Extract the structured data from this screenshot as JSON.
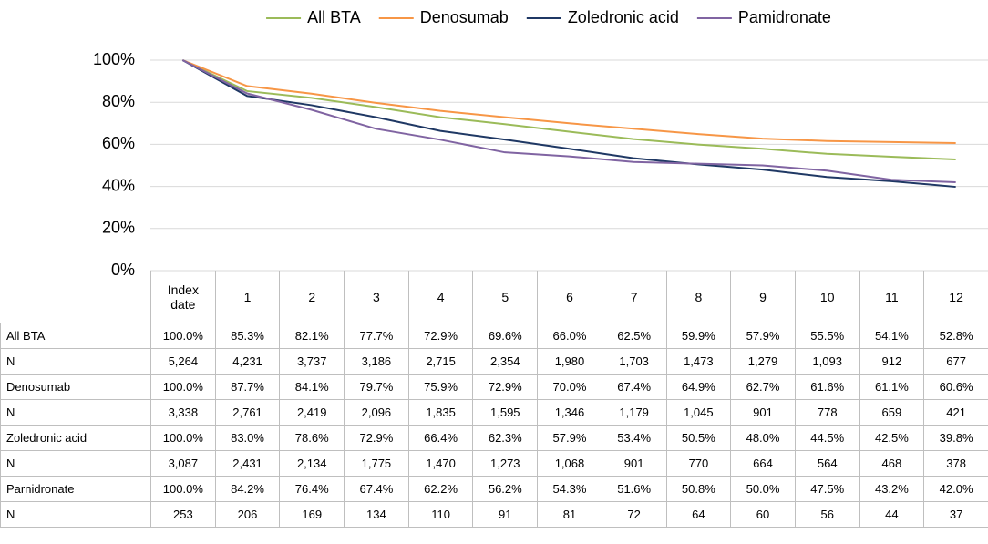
{
  "chart_data": {
    "type": "line",
    "categories": [
      "Index date",
      "1",
      "2",
      "3",
      "4",
      "5",
      "6",
      "7",
      "8",
      "9",
      "10",
      "11",
      "12"
    ],
    "ylim": [
      0,
      100
    ],
    "yticks": [
      {
        "value": 0,
        "label": "0%"
      },
      {
        "value": 20,
        "label": "20%"
      },
      {
        "value": 40,
        "label": "40%"
      },
      {
        "value": 60,
        "label": "60%"
      },
      {
        "value": 80,
        "label": "80%"
      },
      {
        "value": 100,
        "label": "100%"
      }
    ],
    "grid": true,
    "legend": "top",
    "series": [
      {
        "name": "All BTA",
        "table_label": "All BTA",
        "color": "#9bbb59",
        "values": [
          100,
          85.3,
          82.1,
          77.7,
          72.9,
          69.6,
          66.0,
          62.5,
          59.9,
          57.9,
          55.5,
          54.1,
          52.8
        ],
        "value_labels": [
          "100.0%",
          "85.3%",
          "82.1%",
          "77.7%",
          "72.9%",
          "69.6%",
          "66.0%",
          "62.5%",
          "59.9%",
          "57.9%",
          "55.5%",
          "54.1%",
          "52.8%"
        ],
        "n_label": "N",
        "n": [
          "5,264",
          "4,231",
          "3,737",
          "3,186",
          "2,715",
          "2,354",
          "1,980",
          "1,703",
          "1,473",
          "1,279",
          "1,093",
          "912",
          "677"
        ]
      },
      {
        "name": "Denosumab",
        "table_label": "Denosumab",
        "color": "#f79646",
        "values": [
          100,
          87.7,
          84.1,
          79.7,
          75.9,
          72.9,
          70.0,
          67.4,
          64.9,
          62.7,
          61.6,
          61.1,
          60.6
        ],
        "value_labels": [
          "100.0%",
          "87.7%",
          "84.1%",
          "79.7%",
          "75.9%",
          "72.9%",
          "70.0%",
          "67.4%",
          "64.9%",
          "62.7%",
          "61.6%",
          "61.1%",
          "60.6%"
        ],
        "n_label": "N",
        "n": [
          "3,338",
          "2,761",
          "2,419",
          "2,096",
          "1,835",
          "1,595",
          "1,346",
          "1,179",
          "1,045",
          "901",
          "778",
          "659",
          "421"
        ]
      },
      {
        "name": "Zoledronic acid",
        "table_label": "Zoledronic acid",
        "color": "#1f3864",
        "values": [
          100,
          83.0,
          78.6,
          72.9,
          66.4,
          62.3,
          57.9,
          53.4,
          50.5,
          48.0,
          44.5,
          42.5,
          39.8
        ],
        "value_labels": [
          "100.0%",
          "83.0%",
          "78.6%",
          "72.9%",
          "66.4%",
          "62.3%",
          "57.9%",
          "53.4%",
          "50.5%",
          "48.0%",
          "44.5%",
          "42.5%",
          "39.8%"
        ],
        "n_label": "N",
        "n": [
          "3,087",
          "2,431",
          "2,134",
          "1,775",
          "1,470",
          "1,273",
          "1,068",
          "901",
          "770",
          "664",
          "564",
          "468",
          "378"
        ]
      },
      {
        "name": "Pamidronate",
        "table_label": "Parnidronate",
        "color": "#8064a2",
        "values": [
          100,
          84.2,
          76.4,
          67.4,
          62.2,
          56.2,
          54.3,
          51.6,
          50.8,
          50.0,
          47.5,
          43.2,
          42.0
        ],
        "value_labels": [
          "100.0%",
          "84.2%",
          "76.4%",
          "67.4%",
          "62.2%",
          "56.2%",
          "54.3%",
          "51.6%",
          "50.8%",
          "50.0%",
          "47.5%",
          "43.2%",
          "42.0%"
        ],
        "n_label": "N",
        "n": [
          "253",
          "206",
          "169",
          "134",
          "110",
          "91",
          "81",
          "72",
          "64",
          "60",
          "56",
          "44",
          "37"
        ]
      }
    ]
  }
}
